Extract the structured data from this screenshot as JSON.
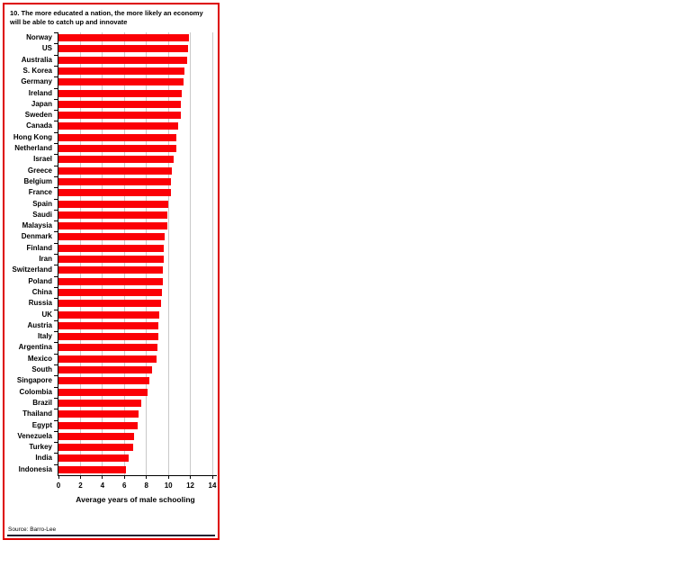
{
  "panel": {
    "title_line1": "10. The more educated a nation, the more likely an economy",
    "title_line2": "will be able to catch up and innovate",
    "source": "Source: Barro-Lee"
  },
  "chart_data": {
    "type": "bar",
    "orientation": "horizontal",
    "title": "10. The more educated a nation, the more likely an economy will be able to catch up and innovate",
    "categories": [
      "Norway",
      "US",
      "Australia",
      "S. Korea",
      "Germany",
      "Ireland",
      "Japan",
      "Sweden",
      "Canada",
      "Hong Kong",
      "Netherland",
      "Israel",
      "Greece",
      "Belgium",
      "France",
      "Spain",
      "Saudi",
      "Malaysia",
      "Denmark",
      "Finland",
      "Iran",
      "Switzerland",
      "Poland",
      "China",
      "Russia",
      "UK",
      "Austria",
      "Italy",
      "Argentina",
      "Mexico",
      "South",
      "Singapore",
      "Colombia",
      "Brazil",
      "Thailand",
      "Egypt",
      "Venezuela",
      "Turkey",
      "India",
      "Indonesia"
    ],
    "values": [
      11.9,
      11.8,
      11.7,
      11.5,
      11.4,
      11.2,
      11.1,
      11.1,
      10.9,
      10.7,
      10.7,
      10.5,
      10.3,
      10.2,
      10.2,
      10.0,
      9.9,
      9.9,
      9.7,
      9.6,
      9.6,
      9.5,
      9.5,
      9.4,
      9.3,
      9.2,
      9.1,
      9.1,
      9.0,
      8.9,
      8.5,
      8.3,
      8.1,
      7.5,
      7.3,
      7.2,
      6.9,
      6.8,
      6.4,
      6.1
    ],
    "xlabel": "Average years of male schooling",
    "xlim": [
      0,
      14
    ],
    "xticks": [
      0,
      2,
      4,
      6,
      8,
      10,
      12,
      14
    ],
    "bar_color": "#fb0006",
    "grid": true,
    "gridline_color": "#c9c9c9",
    "border_color": "#dd0000",
    "source": "Source: Barro-Lee"
  }
}
